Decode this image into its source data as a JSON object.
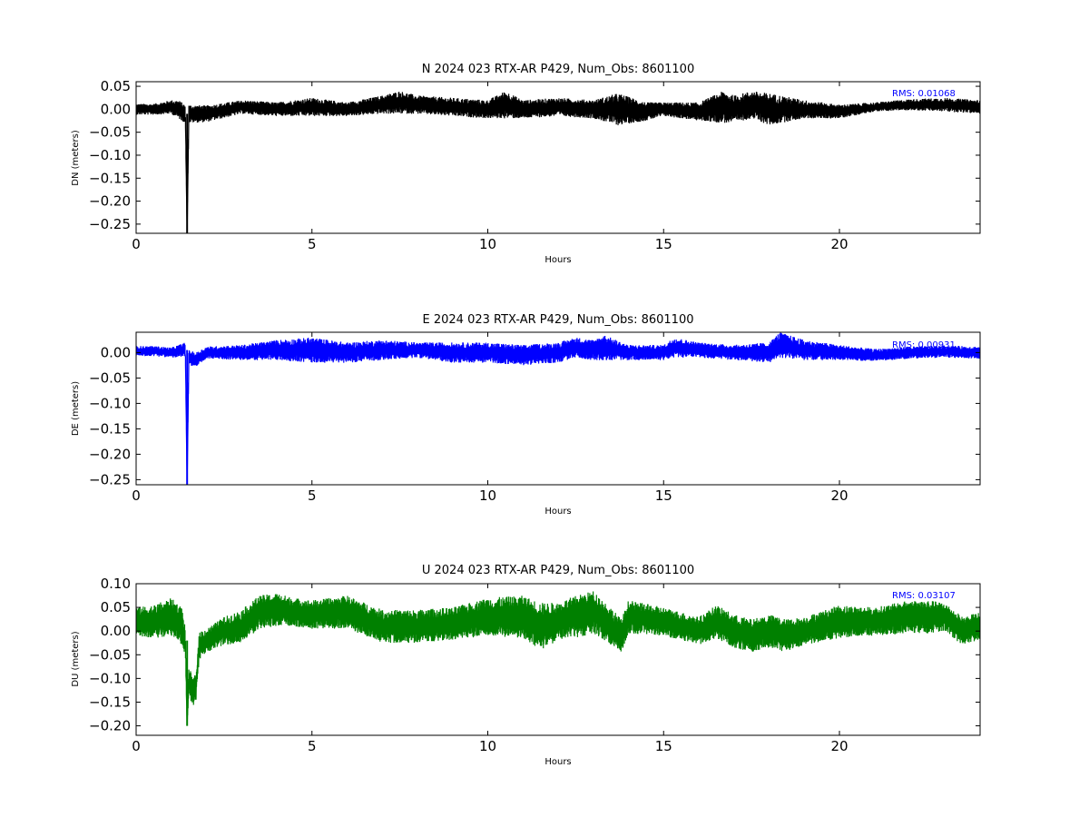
{
  "chart_data": [
    {
      "type": "line",
      "title": "N 2024 023 RTX-AR  P429, Num_Obs: 8601100",
      "xlabel": "Hours",
      "ylabel": "DN (meters)",
      "xlim": [
        0,
        24
      ],
      "ylim": [
        -0.27,
        0.06
      ],
      "xticks": [
        0,
        5,
        10,
        15,
        20
      ],
      "xtick_labels": [
        "0",
        "5",
        "10",
        "15",
        "20"
      ],
      "yticks": [
        0.05,
        0.0,
        -0.05,
        -0.1,
        -0.15,
        -0.2,
        -0.25
      ],
      "ytick_labels": [
        "0.05",
        "0.00",
        "−0.05",
        "−0.10",
        "−0.15",
        "−0.20",
        "−0.25"
      ],
      "color": "#000000",
      "rms_text": "RMS:  0.01068",
      "series": [
        {
          "x": [
            0,
            0.5,
            1.0,
            1.2,
            1.4,
            1.45,
            1.5,
            2.0,
            3.0,
            4.0,
            5.0,
            6.0,
            7.0,
            7.5,
            8.0,
            9.0,
            10.0,
            10.5,
            11.0,
            12.0,
            13.0,
            13.7,
            14.5,
            15.0,
            16.0,
            16.7,
            17.0,
            17.5,
            18.0,
            19.0,
            20.0,
            21.0,
            22.0,
            23.0,
            24.0
          ],
          "y": [
            0.0,
            0.0,
            0.005,
            0.0,
            -0.01,
            -0.27,
            -0.01,
            -0.01,
            0.005,
            0.0,
            0.005,
            0.0,
            0.01,
            0.015,
            0.01,
            0.005,
            0.0,
            0.01,
            0.0,
            0.005,
            0.0,
            0.0,
            -0.005,
            0.0,
            -0.005,
            0.005,
            0.0,
            0.01,
            0.0,
            0.0,
            -0.005,
            0.005,
            0.01,
            0.01,
            0.005
          ],
          "band": [
            0.012,
            0.012,
            0.015,
            0.02,
            0.02,
            0.0,
            0.02,
            0.018,
            0.015,
            0.015,
            0.02,
            0.015,
            0.02,
            0.025,
            0.02,
            0.02,
            0.02,
            0.03,
            0.02,
            0.02,
            0.02,
            0.035,
            0.02,
            0.015,
            0.02,
            0.035,
            0.03,
            0.03,
            0.035,
            0.02,
            0.015,
            0.01,
            0.012,
            0.015,
            0.015
          ]
        }
      ]
    },
    {
      "type": "line",
      "title": "E 2024 023 RTX-AR  P429, Num_Obs: 8601100",
      "xlabel": "Hours",
      "ylabel": "DE (meters)",
      "xlim": [
        0,
        24
      ],
      "ylim": [
        -0.26,
        0.04
      ],
      "xticks": [
        0,
        5,
        10,
        15,
        20
      ],
      "xtick_labels": [
        "0",
        "5",
        "10",
        "15",
        "20"
      ],
      "yticks": [
        0.0,
        -0.05,
        -0.1,
        -0.15,
        -0.2,
        -0.25
      ],
      "ytick_labels": [
        "0.00",
        "−0.05",
        "−0.10",
        "−0.15",
        "−0.20",
        "−0.25"
      ],
      "color": "#0000ff",
      "rms_text": "RMS:  0.00931",
      "series": [
        {
          "x": [
            0,
            0.5,
            1.0,
            1.4,
            1.45,
            1.5,
            1.7,
            2.0,
            3.0,
            4.0,
            5.0,
            6.0,
            7.0,
            8.0,
            9.0,
            10.0,
            11.0,
            12.0,
            12.5,
            13.0,
            13.3,
            14.0,
            15.0,
            15.3,
            16.0,
            17.0,
            18.0,
            18.3,
            19.0,
            20.0,
            21.0,
            22.0,
            23.0,
            24.0
          ],
          "y": [
            0.003,
            0.003,
            0.0,
            0.005,
            -0.26,
            -0.01,
            -0.015,
            0.0,
            0.0,
            0.005,
            0.005,
            0.0,
            0.005,
            0.005,
            0.0,
            0.0,
            -0.005,
            0.0,
            0.01,
            0.005,
            0.01,
            0.0,
            0.0,
            0.01,
            0.005,
            0.0,
            0.0,
            0.015,
            0.005,
            0.0,
            -0.005,
            0.0,
            0.002,
            0.0
          ],
          "band": [
            0.01,
            0.01,
            0.01,
            0.015,
            0.0,
            0.015,
            0.015,
            0.012,
            0.015,
            0.02,
            0.025,
            0.02,
            0.02,
            0.015,
            0.02,
            0.02,
            0.02,
            0.02,
            0.02,
            0.02,
            0.025,
            0.015,
            0.015,
            0.02,
            0.015,
            0.015,
            0.02,
            0.025,
            0.02,
            0.015,
            0.012,
            0.012,
            0.012,
            0.012
          ]
        }
      ]
    },
    {
      "type": "line",
      "title": "U 2024 023 RTX-AR  P429, Num_Obs: 8601100",
      "xlabel": "Hours",
      "ylabel": "DU (meters)",
      "xlim": [
        0,
        24
      ],
      "ylim": [
        -0.22,
        0.1
      ],
      "xticks": [
        0,
        5,
        10,
        15,
        20
      ],
      "xtick_labels": [
        "0",
        "5",
        "10",
        "15",
        "20"
      ],
      "yticks": [
        0.1,
        0.05,
        0.0,
        -0.05,
        -0.1,
        -0.15,
        -0.2
      ],
      "ytick_labels": [
        "0.10",
        "0.05",
        "0.00",
        "−0.05",
        "−0.10",
        "−0.15",
        "−0.20"
      ],
      "color": "#008000",
      "rms_text": "RMS:  0.03107",
      "series": [
        {
          "x": [
            0,
            0.5,
            1.0,
            1.3,
            1.4,
            1.45,
            1.5,
            1.6,
            1.7,
            1.8,
            2.0,
            2.5,
            3.0,
            3.5,
            4.0,
            4.5,
            5.0,
            6.0,
            7.0,
            8.0,
            9.0,
            10.0,
            11.0,
            11.5,
            12.0,
            12.5,
            13.0,
            13.5,
            13.8,
            14.0,
            15.0,
            16.0,
            16.5,
            17.0,
            17.5,
            18.0,
            18.5,
            19.0,
            20.0,
            21.0,
            22.0,
            22.5,
            23.0,
            23.5,
            24.0
          ],
          "y": [
            0.02,
            0.02,
            0.03,
            0.01,
            -0.02,
            -0.2,
            -0.1,
            -0.13,
            -0.12,
            -0.03,
            -0.02,
            0.0,
            0.01,
            0.04,
            0.045,
            0.04,
            0.035,
            0.04,
            0.01,
            0.01,
            0.015,
            0.03,
            0.03,
            0.01,
            0.02,
            0.03,
            0.04,
            0.01,
            -0.01,
            0.03,
            0.02,
            0.0,
            0.02,
            0.0,
            -0.01,
            0.0,
            -0.01,
            0.0,
            0.02,
            0.02,
            0.03,
            0.03,
            0.03,
            0.0,
            0.01
          ],
          "band": [
            0.03,
            0.035,
            0.04,
            0.04,
            0.03,
            0.0,
            0.03,
            0.03,
            0.03,
            0.03,
            0.025,
            0.03,
            0.035,
            0.035,
            0.035,
            0.03,
            0.03,
            0.035,
            0.035,
            0.035,
            0.035,
            0.04,
            0.045,
            0.05,
            0.04,
            0.045,
            0.045,
            0.04,
            0.035,
            0.035,
            0.03,
            0.03,
            0.035,
            0.035,
            0.035,
            0.035,
            0.035,
            0.03,
            0.035,
            0.03,
            0.035,
            0.035,
            0.03,
            0.03,
            0.03
          ]
        }
      ]
    }
  ]
}
